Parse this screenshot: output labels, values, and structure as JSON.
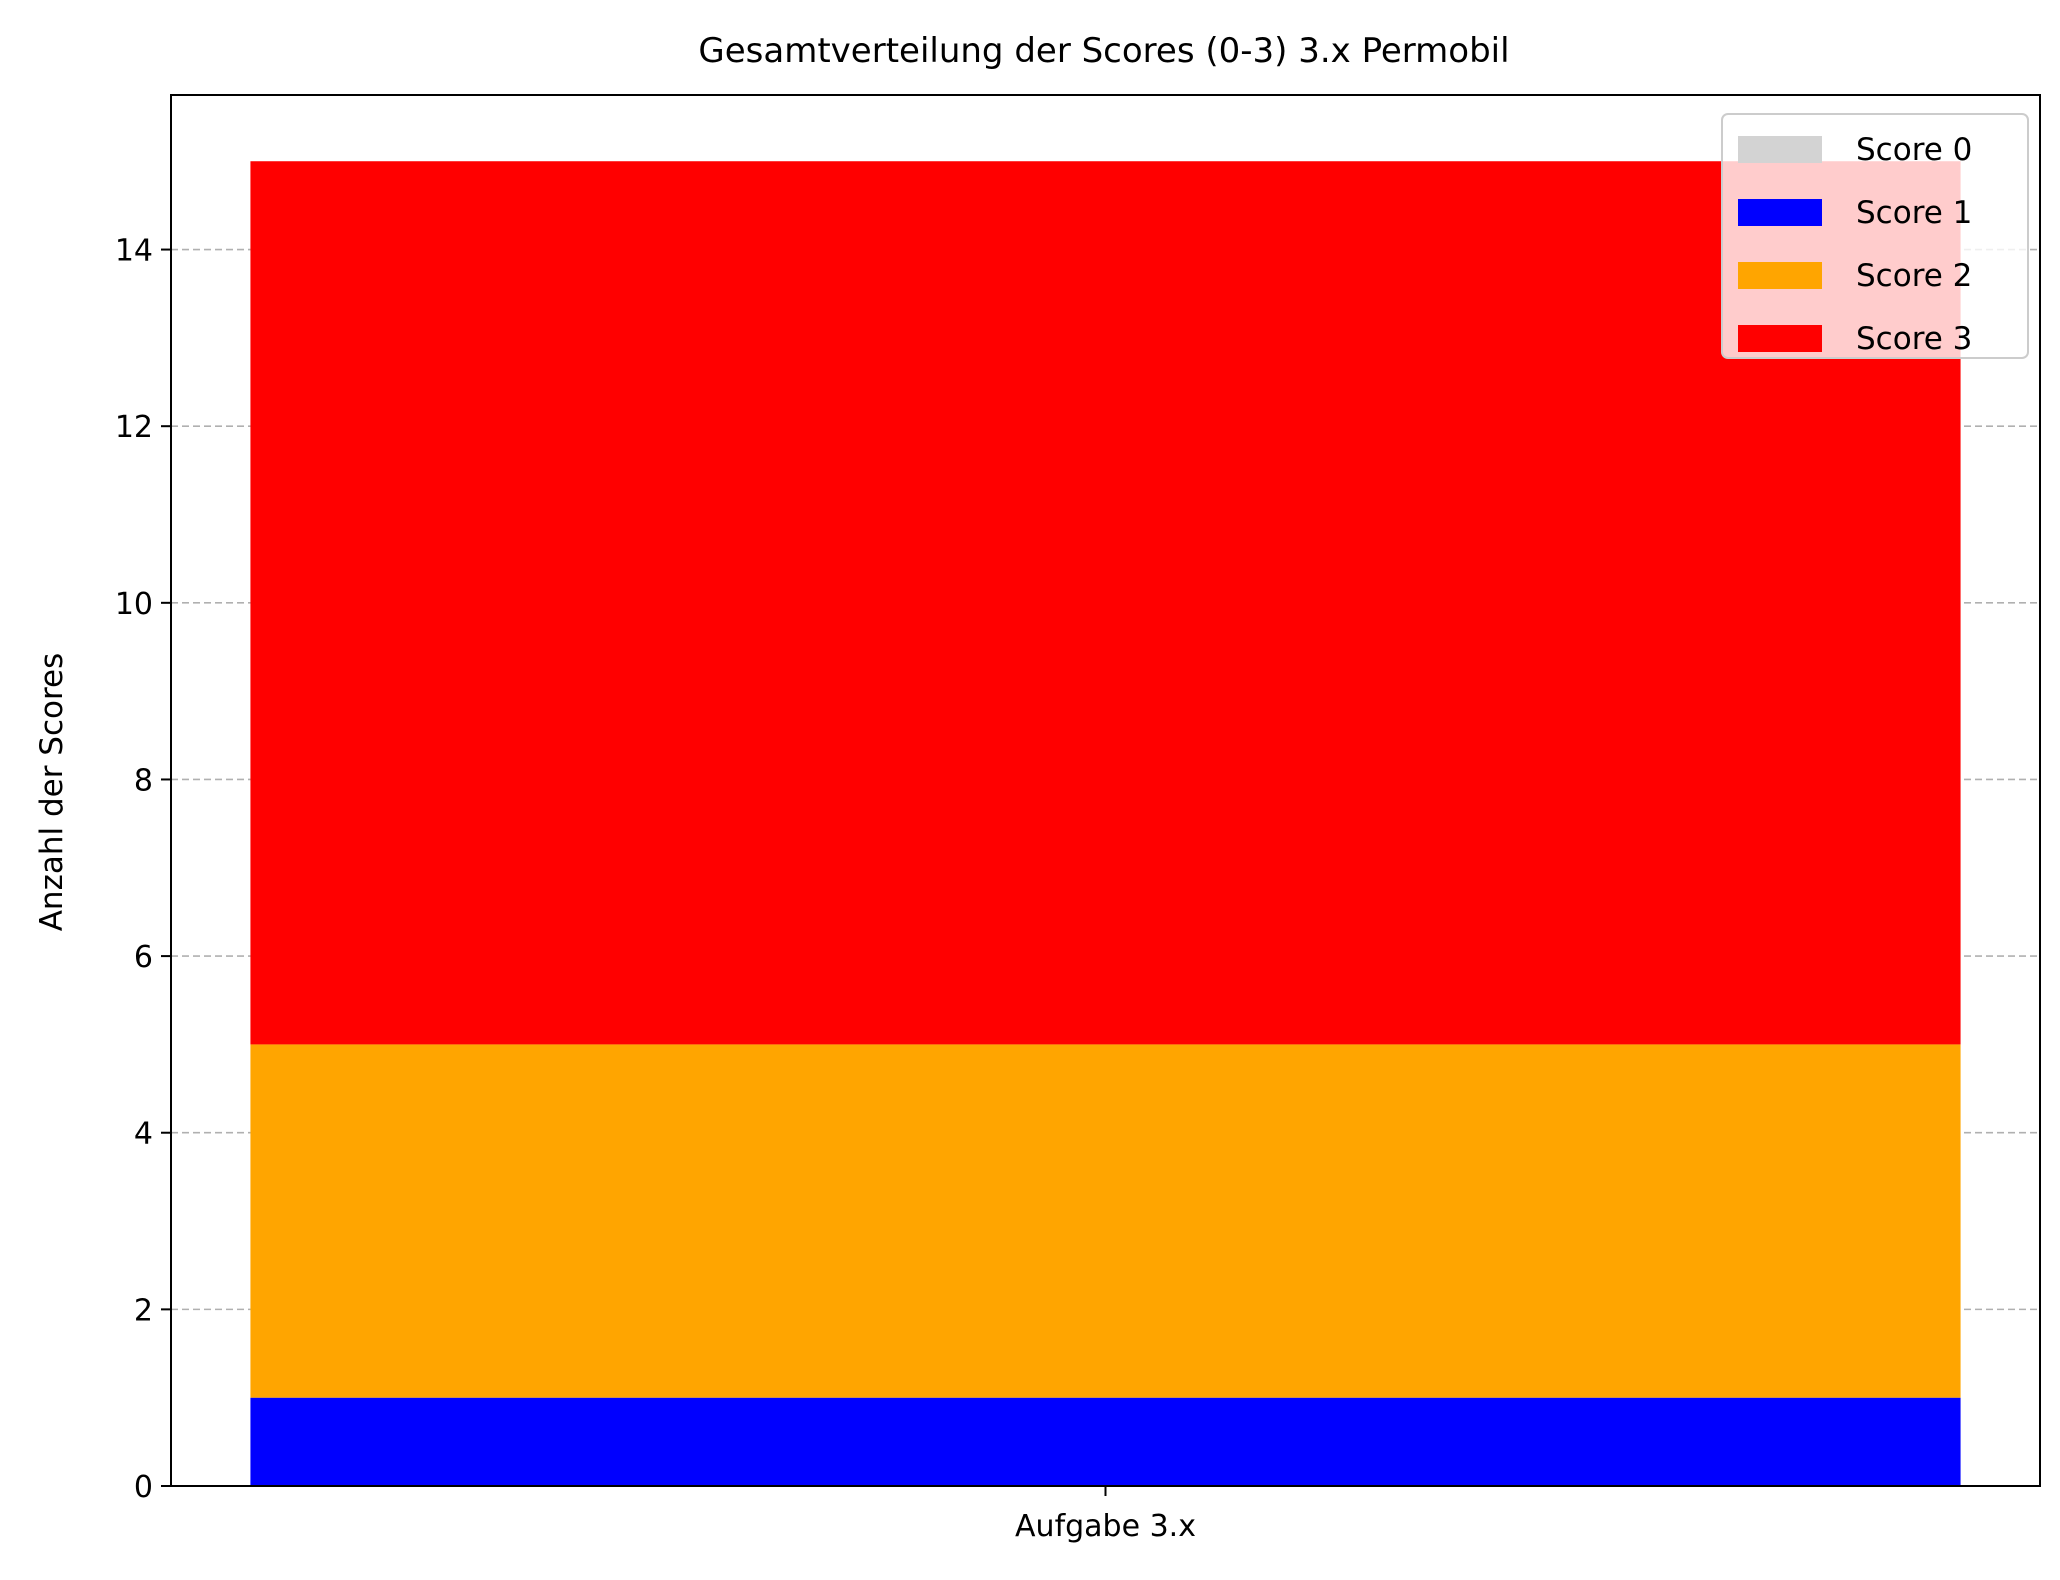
{
  "chart_data": {
    "type": "bar",
    "stacked": true,
    "title": "Gesamtverteilung der Scores (0-3) 3.x Permobil",
    "xlabel": "",
    "ylabel": "Anzahl der Scores",
    "categories": [
      "Aufgabe 3.x"
    ],
    "ylim": [
      0,
      15.75
    ],
    "yticks": [
      0,
      2,
      4,
      6,
      8,
      10,
      12,
      14
    ],
    "grid": {
      "axis": "y",
      "style": "dashed"
    },
    "legend": {
      "position": "top-right"
    },
    "series": [
      {
        "name": "Score 0",
        "values": [
          0
        ],
        "color": "#d3d3d3"
      },
      {
        "name": "Score 1",
        "values": [
          1
        ],
        "color": "#0000ff"
      },
      {
        "name": "Score 2",
        "values": [
          4
        ],
        "color": "#ffa500"
      },
      {
        "name": "Score 3",
        "values": [
          10
        ],
        "color": "#ff0000"
      }
    ]
  }
}
